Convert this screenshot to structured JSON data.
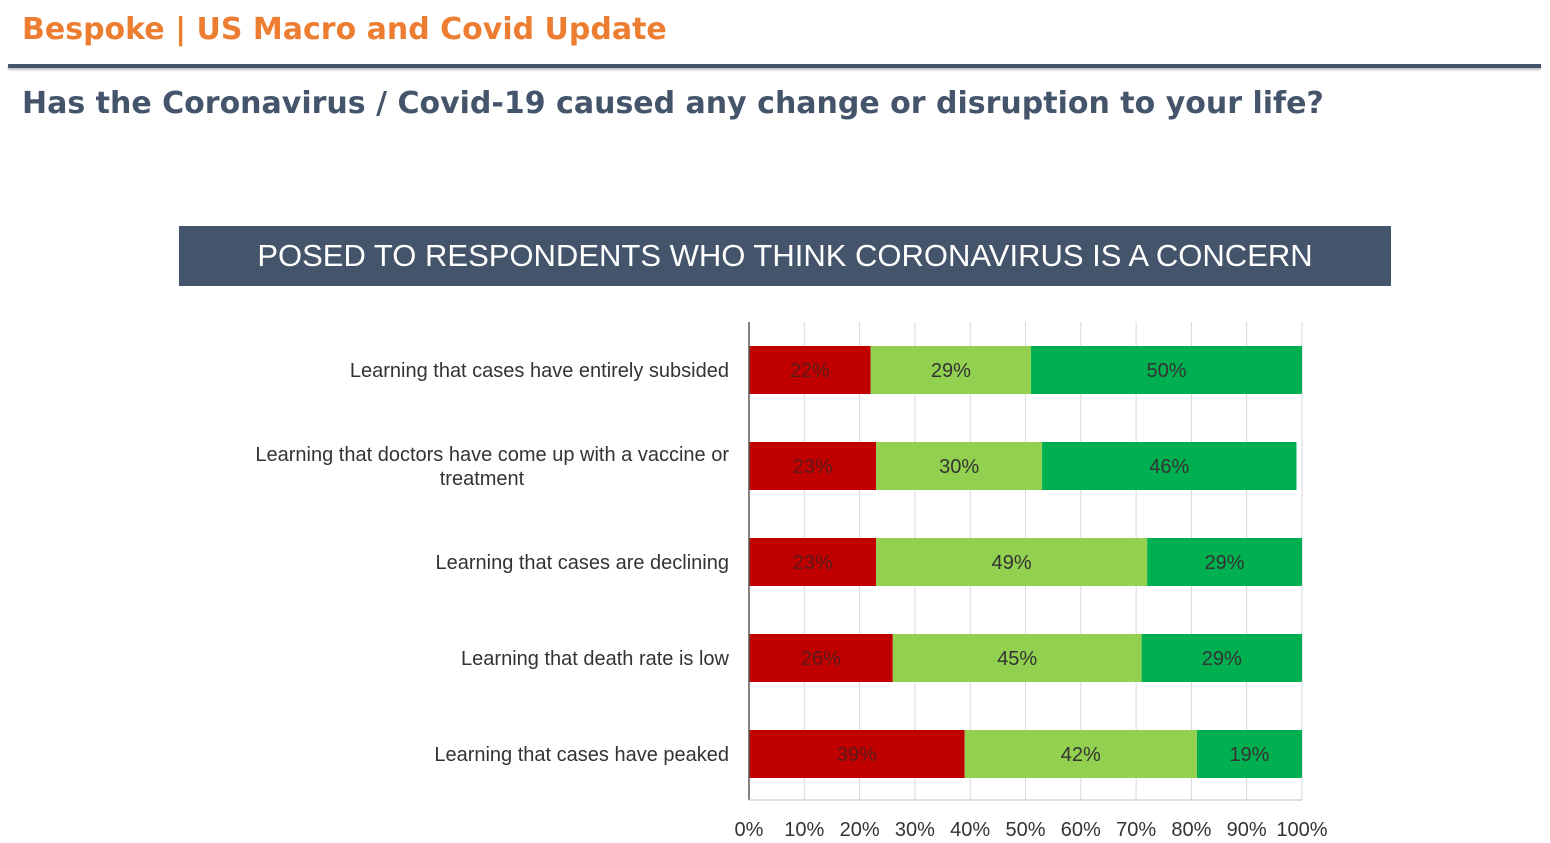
{
  "header": {
    "brand_title": "Bespoke | US Macro and Covid Update",
    "question": "Has the Coronavirus / Covid-19 caused any change or disruption to your life?"
  },
  "banner": {
    "text": "POSED TO RESPONDENTS WHO THINK CORONAVIRUS IS A CONCERN"
  },
  "colors": {
    "brand_orange": "#ED7D31",
    "slate": "#44546A",
    "series_red": "#C00000",
    "series_light_green": "#92D050",
    "series_green": "#00B050"
  },
  "chart_data": {
    "type": "bar",
    "orientation": "horizontal",
    "stacked": true,
    "categories": [
      [
        "Learning that cases have entirely subsided"
      ],
      [
        "Learning that doctors have come up with a vaccine or",
        "treatment"
      ],
      [
        "Learning that cases are declining"
      ],
      [
        "Learning that death rate is low"
      ],
      [
        "Learning that cases have peaked"
      ]
    ],
    "series": [
      {
        "values": [
          22,
          23,
          23,
          26,
          39
        ],
        "labels": [
          "22%",
          "23%",
          "23%",
          "26%",
          "39%"
        ],
        "color": "#C00000"
      },
      {
        "values": [
          29,
          30,
          49,
          45,
          42
        ],
        "labels": [
          "29%",
          "30%",
          "49%",
          "45%",
          "42%"
        ],
        "color": "#92D050"
      },
      {
        "values": [
          50,
          46,
          29,
          29,
          19
        ],
        "labels": [
          "50%",
          "46%",
          "29%",
          "29%",
          "19%"
        ],
        "color": "#00B050"
      }
    ],
    "xlim": [
      0,
      100
    ],
    "x_ticks": [
      "0%",
      "10%",
      "20%",
      "30%",
      "40%",
      "50%",
      "60%",
      "70%",
      "80%",
      "90%",
      "100%"
    ],
    "grid": true,
    "legend": "none"
  }
}
